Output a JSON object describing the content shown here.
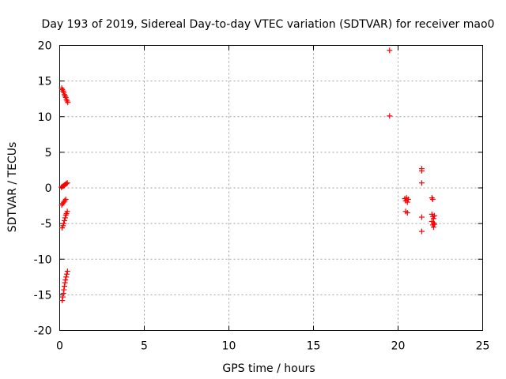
{
  "chart_data": {
    "type": "scatter",
    "title": "Day 193 of 2019, Sidereal Day-to-day VTEC variation (SDTVAR) for receiver mao0",
    "xlabel": "GPS time / hours",
    "ylabel": "SDTVAR / TECUs",
    "xlim": [
      0,
      25
    ],
    "ylim": [
      -20,
      20
    ],
    "xticks": [
      0,
      5,
      10,
      15,
      20,
      25
    ],
    "yticks": [
      -20,
      -15,
      -10,
      -5,
      0,
      5,
      10,
      15,
      20
    ],
    "grid": true,
    "marker": "+",
    "color": "#ff0000",
    "series": [
      {
        "name": "SDTVAR",
        "points": [
          [
            0.12,
            14.0
          ],
          [
            0.16,
            13.8
          ],
          [
            0.2,
            13.6
          ],
          [
            0.24,
            13.4
          ],
          [
            0.28,
            13.1
          ],
          [
            0.32,
            12.9
          ],
          [
            0.36,
            12.7
          ],
          [
            0.4,
            12.4
          ],
          [
            0.44,
            12.2
          ],
          [
            0.48,
            12.0
          ],
          [
            0.1,
            0.1
          ],
          [
            0.16,
            0.2
          ],
          [
            0.22,
            0.3
          ],
          [
            0.28,
            0.4
          ],
          [
            0.34,
            0.5
          ],
          [
            0.4,
            0.6
          ],
          [
            0.45,
            0.7
          ],
          [
            0.12,
            -2.4
          ],
          [
            0.18,
            -2.2
          ],
          [
            0.24,
            -2.0
          ],
          [
            0.3,
            -1.8
          ],
          [
            0.36,
            -1.6
          ],
          [
            0.14,
            -5.6
          ],
          [
            0.2,
            -5.3
          ],
          [
            0.24,
            -5.0
          ],
          [
            0.28,
            -4.6
          ],
          [
            0.32,
            -4.2
          ],
          [
            0.36,
            -3.8
          ],
          [
            0.4,
            -3.6
          ],
          [
            0.45,
            -3.3
          ],
          [
            0.15,
            -15.8
          ],
          [
            0.18,
            -15.3
          ],
          [
            0.22,
            -14.8
          ],
          [
            0.25,
            -14.3
          ],
          [
            0.28,
            -13.8
          ],
          [
            0.31,
            -13.3
          ],
          [
            0.34,
            -12.9
          ],
          [
            0.38,
            -12.5
          ],
          [
            0.42,
            -12.1
          ],
          [
            0.46,
            -11.7
          ],
          [
            19.5,
            19.3
          ],
          [
            19.5,
            10.1
          ],
          [
            20.4,
            -1.5
          ],
          [
            20.45,
            -1.8
          ],
          [
            20.5,
            -1.4
          ],
          [
            20.55,
            -2.0
          ],
          [
            20.6,
            -1.6
          ],
          [
            20.45,
            -3.3
          ],
          [
            20.55,
            -3.5
          ],
          [
            21.4,
            2.7
          ],
          [
            21.4,
            2.4
          ],
          [
            21.4,
            0.7
          ],
          [
            21.4,
            -4.1
          ],
          [
            21.4,
            -6.1
          ],
          [
            22.0,
            -1.4
          ],
          [
            22.05,
            -1.6
          ],
          [
            22.0,
            -3.7
          ],
          [
            22.05,
            -4.0
          ],
          [
            22.1,
            -4.3
          ],
          [
            22.0,
            -4.7
          ],
          [
            22.1,
            -4.9
          ],
          [
            22.05,
            -5.2
          ],
          [
            22.1,
            -5.5
          ],
          [
            22.15,
            -3.9
          ],
          [
            22.15,
            -5.1
          ]
        ]
      }
    ]
  }
}
